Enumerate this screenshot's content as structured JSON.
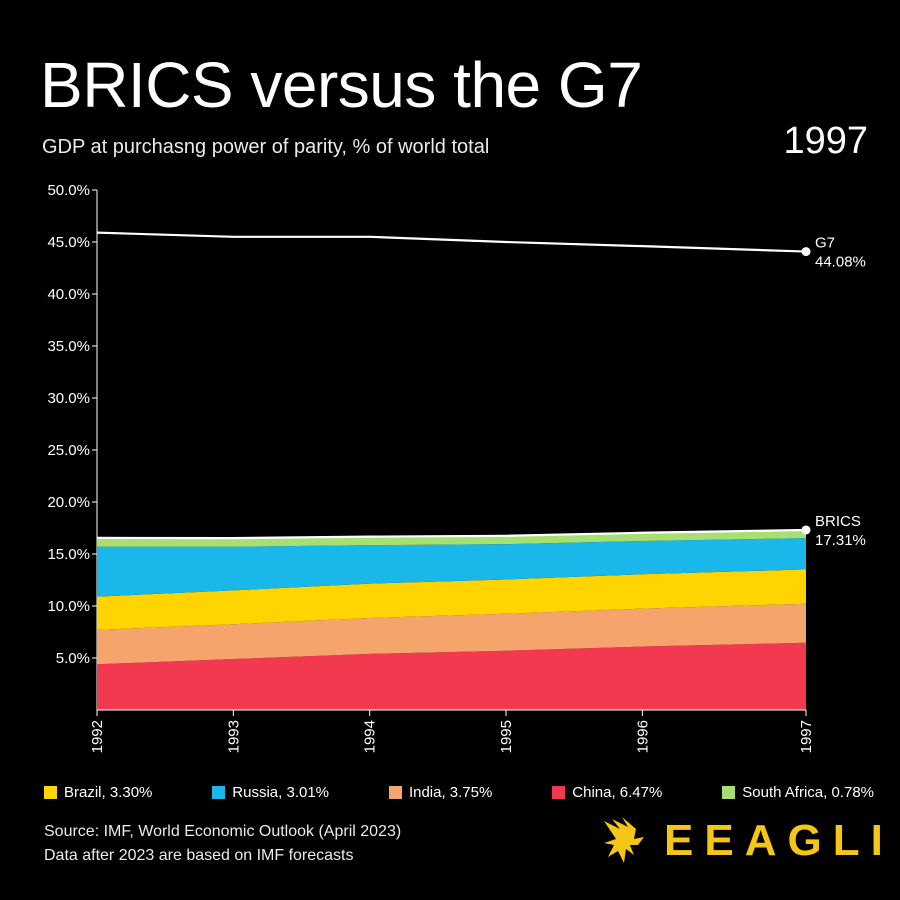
{
  "header": {
    "title": "BRICS versus the G7",
    "subtitle": "GDP at purchasng power of parity, % of world total",
    "year": "1997"
  },
  "footer": {
    "source_line1": "Source: IMF, World Economic Outlook (April 2023)",
    "source_line2": "Data after 2023 are based on IMF forecasts",
    "brand": "EEAGLI"
  },
  "legend": [
    {
      "label": "Brazil, 3.30%",
      "color": "#ffd400"
    },
    {
      "label": "Russia, 3.01%",
      "color": "#19b7ea"
    },
    {
      "label": "India, 3.75%",
      "color": "#f5a46b"
    },
    {
      "label": "China, 6.47%",
      "color": "#f2394f"
    },
    {
      "label": "South Africa, 0.78%",
      "color": "#a6df72"
    }
  ],
  "chart_data": {
    "type": "area",
    "x": [
      1992,
      1993,
      1994,
      1995,
      1996,
      1997
    ],
    "x_tick_labels": [
      "1992",
      "1993",
      "1994",
      "1995",
      "1996",
      "1997"
    ],
    "y_tick_labels": [
      "50.0%",
      "45.0%",
      "40.0%",
      "35.0%",
      "30.0%",
      "25.0%",
      "20.0%",
      "15.0%",
      "10.0%",
      "5.0%"
    ],
    "y_ticks": [
      50,
      45,
      40,
      35,
      30,
      25,
      20,
      15,
      10,
      5
    ],
    "ylim": [
      0,
      50
    ],
    "xlim": [
      1992,
      1997.2
    ],
    "stacked_series": [
      {
        "name": "China",
        "color": "#f2394f",
        "values": [
          4.4,
          4.9,
          5.4,
          5.7,
          6.1,
          6.47
        ]
      },
      {
        "name": "India",
        "color": "#f5a46b",
        "values": [
          3.3,
          3.35,
          3.45,
          3.55,
          3.65,
          3.75
        ]
      },
      {
        "name": "Brazil",
        "color": "#ffd400",
        "values": [
          3.2,
          3.25,
          3.3,
          3.3,
          3.3,
          3.3
        ]
      },
      {
        "name": "Russia",
        "color": "#19b7ea",
        "values": [
          4.8,
          4.2,
          3.7,
          3.4,
          3.2,
          3.01
        ]
      },
      {
        "name": "South Africa",
        "color": "#a6df72",
        "values": [
          0.85,
          0.83,
          0.82,
          0.8,
          0.79,
          0.78
        ]
      }
    ],
    "lines": [
      {
        "name": "G7",
        "color": "#ffffff",
        "values": [
          45.9,
          45.5,
          45.5,
          45.0,
          44.6,
          44.08
        ],
        "end_label": "G7",
        "end_value": "44.08%"
      },
      {
        "name": "BRICS",
        "color": "#ffffff",
        "values": [
          16.55,
          16.53,
          16.67,
          16.75,
          17.04,
          17.31
        ],
        "end_label": "BRICS",
        "end_value": "17.31%"
      }
    ]
  }
}
